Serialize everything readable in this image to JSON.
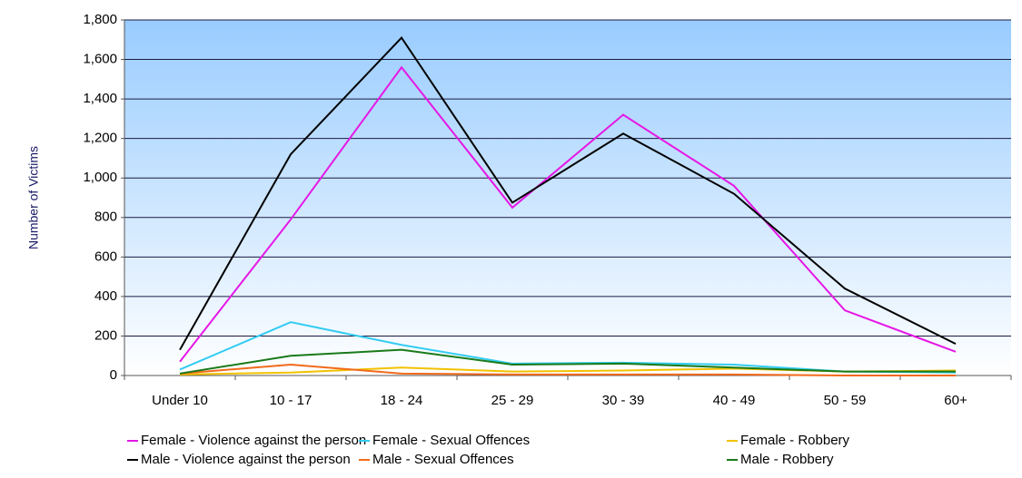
{
  "chart_data": {
    "type": "line",
    "y_label": "Number of Victims",
    "categories": [
      "Under 10",
      "10 - 17",
      "18 - 24",
      "25 - 29",
      "30 - 39",
      "40 - 49",
      "50 - 59",
      "60+"
    ],
    "series": [
      {
        "name": "Female - Violence against the person",
        "color": "#e617e6",
        "values": [
          70,
          790,
          1560,
          850,
          1320,
          960,
          330,
          120
        ]
      },
      {
        "name": "Female - Sexual Offences",
        "color": "#33ccf2",
        "values": [
          30,
          270,
          155,
          60,
          65,
          55,
          20,
          15
        ]
      },
      {
        "name": "Female - Robbery",
        "color": "#f2c200",
        "values": [
          5,
          15,
          40,
          20,
          25,
          35,
          20,
          25
        ]
      },
      {
        "name": "Male - Violence against the person",
        "color": "#000000",
        "values": [
          130,
          1120,
          1710,
          875,
          1225,
          920,
          440,
          160
        ]
      },
      {
        "name": "Male - Sexual Offences",
        "color": "#f26a1b",
        "values": [
          10,
          55,
          10,
          5,
          5,
          5,
          0,
          0
        ]
      },
      {
        "name": "Male - Robbery",
        "color": "#1a7a1a",
        "values": [
          10,
          100,
          130,
          55,
          60,
          40,
          20,
          20
        ]
      }
    ],
    "ylim": [
      0,
      1800
    ],
    "yticks": [
      0,
      200,
      400,
      600,
      800,
      {
        "value": 1000,
        "label": "1,000"
      },
      {
        "value": 1200,
        "label": "1,200"
      },
      {
        "value": 1400,
        "label": "1,400"
      },
      {
        "value": 1600,
        "label": "1,600"
      },
      {
        "value": 1800,
        "label": "1,800"
      }
    ],
    "grid": true
  }
}
